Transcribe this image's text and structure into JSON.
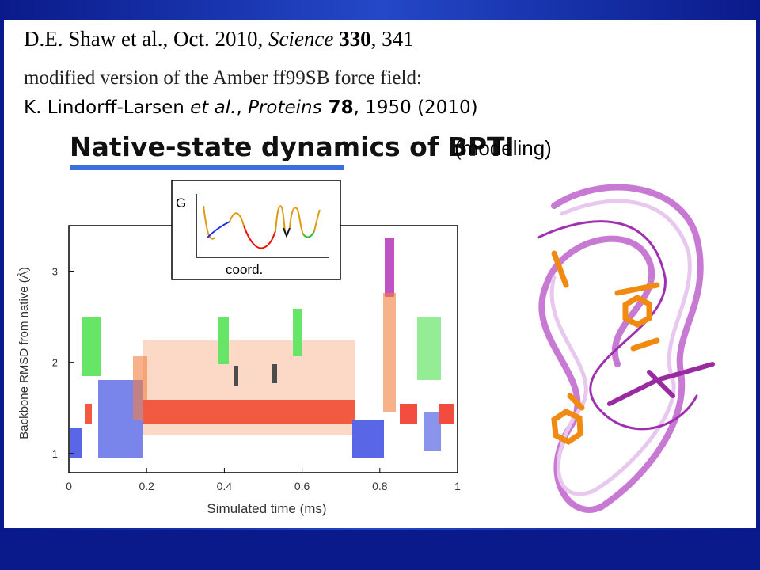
{
  "citation": [
    "D.E. Shaw et al., Oct. 2010, ",
    "Science",
    " 330",
    ", 341"
  ],
  "subtitle": "modified version of the Amber ff99SB force field:",
  "reference": [
    "K. Lindorff-Larsen ",
    "et al.",
    ", ",
    "Proteins",
    " 78",
    ", 1950 (2010)"
  ],
  "heading": "Native-state dynamics of BPTI",
  "heading_note": "(modeling)",
  "inset": {
    "y_label": "G",
    "x_label": "coord."
  },
  "chart_data": {
    "type": "scatter",
    "x_label": "Simulated time (ms)",
    "y_label": "Backbone RMSD from native (Å)",
    "xlim": [
      0,
      1
    ],
    "ylim": [
      0.79,
      3.5
    ],
    "xticks": [
      0,
      0.2,
      0.4,
      0.6,
      0.8,
      1
    ],
    "yticks": [
      1,
      2,
      3
    ]
  }
}
